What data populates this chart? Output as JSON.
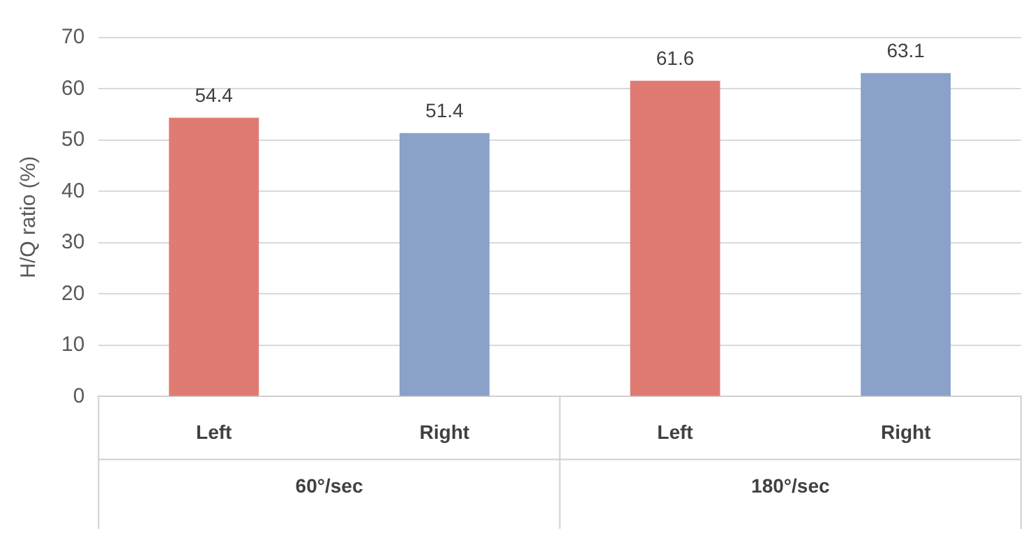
{
  "chart_data": {
    "type": "bar",
    "ylabel": "H/Q ratio (%)",
    "categories": [
      "Left",
      "Right",
      "Left",
      "Right"
    ],
    "values": [
      54.4,
      51.4,
      61.6,
      63.1
    ],
    "colors": [
      "#e07b74",
      "#8aa1c8",
      "#e07b74",
      "#8aa1c8"
    ],
    "ylim": [
      0,
      70
    ],
    "yticks": [
      0,
      10,
      20,
      30,
      40,
      50,
      60,
      70
    ],
    "grid": "y",
    "data_labels": true,
    "legend": false,
    "annotations": [
      "60°/sec",
      "180°/sec"
    ]
  }
}
